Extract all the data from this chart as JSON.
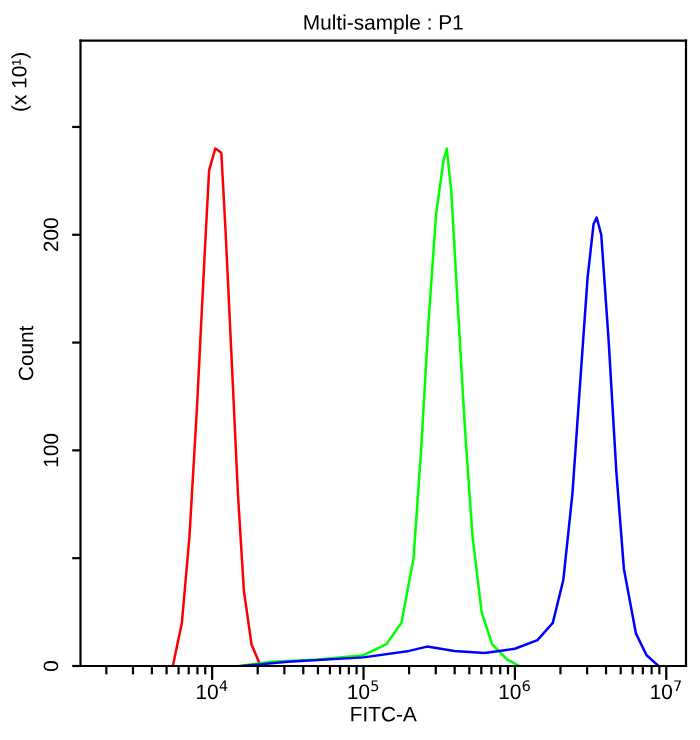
{
  "chart_data": {
    "type": "line",
    "title": "Multi-sample : P1",
    "xlabel": "FITC-A",
    "ylabel": "Count",
    "annotations": [
      "(x 10¹)"
    ],
    "log": "x",
    "grid": false,
    "legend": false,
    "marker": "none",
    "line_style": "solid",
    "xlim": [
      1350,
      13500000
    ],
    "xticks": [
      {
        "value": 2000,
        "label": null
      },
      {
        "value": 3000,
        "label": null
      },
      {
        "value": 4000,
        "label": null
      },
      {
        "value": 5000,
        "label": null
      },
      {
        "value": 6000,
        "label": null
      },
      {
        "value": 7000,
        "label": null
      },
      {
        "value": 8000,
        "label": null
      },
      {
        "value": 9000,
        "label": null
      },
      {
        "value": 10000,
        "label": "10$^{4}$"
      },
      {
        "value": 20000,
        "label": null
      },
      {
        "value": 30000,
        "label": null
      },
      {
        "value": 40000,
        "label": null
      },
      {
        "value": 50000,
        "label": null
      },
      {
        "value": 60000,
        "label": null
      },
      {
        "value": 70000,
        "label": null
      },
      {
        "value": 80000,
        "label": null
      },
      {
        "value": 90000,
        "label": null
      },
      {
        "value": 100000,
        "label": "10$^{5}$"
      },
      {
        "value": 200000,
        "label": null
      },
      {
        "value": 300000,
        "label": null
      },
      {
        "value": 400000,
        "label": null
      },
      {
        "value": 500000,
        "label": null
      },
      {
        "value": 600000,
        "label": null
      },
      {
        "value": 700000,
        "label": null
      },
      {
        "value": 800000,
        "label": null
      },
      {
        "value": 900000,
        "label": null
      },
      {
        "value": 1000000,
        "label": "10$^{6}$"
      },
      {
        "value": 2000000,
        "label": null
      },
      {
        "value": 3000000,
        "label": null
      },
      {
        "value": 4000000,
        "label": null
      },
      {
        "value": 5000000,
        "label": null
      },
      {
        "value": 6000000,
        "label": null
      },
      {
        "value": 7000000,
        "label": null
      },
      {
        "value": 8000000,
        "label": null
      },
      {
        "value": 9000000,
        "label": null
      },
      {
        "value": 10000000,
        "label": "10$^{7}$"
      }
    ],
    "ylim": [
      0,
      290
    ],
    "yticks": [
      0,
      {
        "value": 50,
        "label": null
      },
      100,
      {
        "value": 150,
        "label": null
      },
      200,
      {
        "value": 250,
        "label": null
      }
    ],
    "series": [
      {
        "color": "#ff0000",
        "x": [
          5500,
          6310,
          7080,
          7940,
          8910,
          9550,
          10500,
          11500,
          12300,
          13500,
          14800,
          16200,
          18200,
          20900
        ],
        "values": [
          0,
          20,
          60,
          120,
          190,
          230,
          240,
          238,
          200,
          140,
          80,
          35,
          10,
          0
        ]
      },
      {
        "color": "#00ff00",
        "x": [
          15100,
          25100,
          50100,
          100000,
          141000,
          178000,
          214000,
          240000,
          269000,
          302000,
          339000,
          355000,
          380000,
          417000,
          468000,
          525000,
          603000,
          708000,
          891000,
          1070000
        ],
        "values": [
          0,
          2,
          3,
          5,
          10,
          20,
          50,
          100,
          160,
          210,
          235,
          240,
          220,
          170,
          110,
          60,
          25,
          10,
          3,
          0
        ]
      },
      {
        "color": "#0000ff",
        "x": [
          15800,
          31600,
          100000,
          200000,
          263000,
          398000,
          631000,
          1000000,
          1410000,
          1780000,
          2090000,
          2400000,
          2690000,
          3020000,
          3310000,
          3470000,
          3720000,
          4170000,
          4680000,
          5250000,
          6310000,
          7410000,
          8910000
        ],
        "values": [
          0,
          2,
          4,
          7,
          9,
          7,
          6,
          8,
          12,
          20,
          40,
          80,
          130,
          180,
          205,
          208,
          200,
          150,
          90,
          45,
          15,
          5,
          0
        ]
      }
    ]
  }
}
